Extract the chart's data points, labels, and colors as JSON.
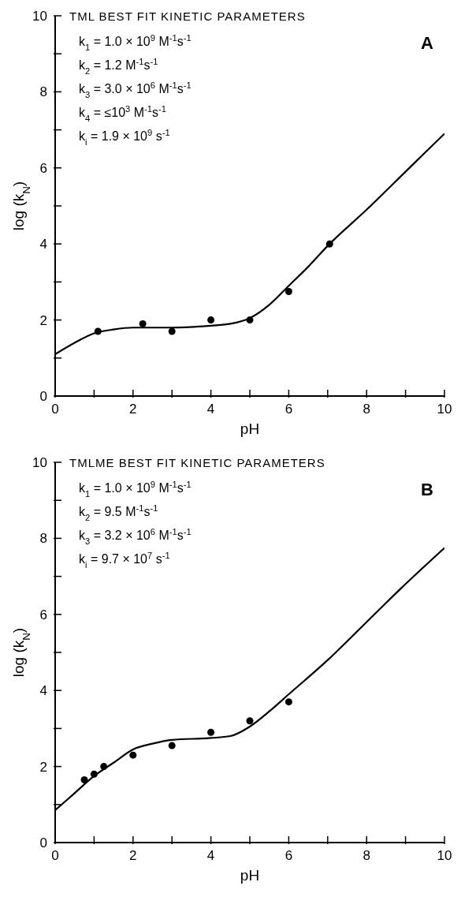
{
  "chart_data": [
    {
      "type": "scatter",
      "title": "TML BEST FIT KINETIC PARAMETERS",
      "xlabel": "pH",
      "ylabel": "log (k$_{N}$)",
      "annotations": [
        "A",
        "k$_{1}$ = 1.0 × 10$^{9}$ M$^{-1}$s$^{-1}$",
        "k$_{2}$ = 1.2 M$^{-1}$s$^{-1}$",
        "k$_{3}$ = 3.0 × 10$^{6}$ M$^{-1}$s$^{-1}$",
        "k$_{4}$ = ≤10$^{3}$ M$^{-1}$s$^{-1}$",
        "k$_{i}$ = 1.9 × 10$^{9}$ s$^{-1}$"
      ],
      "xlim": [
        0,
        10
      ],
      "ylim": [
        0,
        10
      ],
      "xticks": [
        0,
        {
          "value": 1,
          "label": null
        },
        2,
        {
          "value": 3,
          "label": null
        },
        4,
        {
          "value": 5,
          "label": null
        },
        6,
        {
          "value": 7,
          "label": null
        },
        8,
        {
          "value": 9,
          "label": null
        },
        10
      ],
      "yticks": [
        0,
        {
          "value": 1,
          "label": null
        },
        2,
        {
          "value": 3,
          "label": null
        },
        4,
        {
          "value": 5,
          "label": null
        },
        6,
        {
          "value": 7,
          "label": null
        },
        8,
        {
          "value": 9,
          "label": null
        },
        10
      ],
      "series": [
        {
          "type": "scatter",
          "marker": "circle",
          "color": "#000000",
          "x": [
            1.1,
            2.25,
            3,
            4,
            5,
            6,
            7.05
          ],
          "values": [
            1.7,
            1.9,
            1.7,
            2.0,
            2.0,
            2.75,
            4.0
          ]
        },
        {
          "type": "line",
          "color": "#000000",
          "x": [
            0,
            0.5,
            1,
            1.5,
            2,
            3,
            4,
            4.5,
            5,
            5.5,
            6,
            6.5,
            7,
            8,
            9,
            10
          ],
          "values": [
            1.1,
            1.4,
            1.65,
            1.75,
            1.8,
            1.8,
            1.85,
            1.9,
            2.05,
            2.4,
            2.9,
            3.4,
            3.95,
            4.9,
            5.9,
            6.9
          ]
        }
      ]
    },
    {
      "type": "scatter",
      "title": "TMLME BEST FIT KINETIC PARAMETERS",
      "xlabel": "pH",
      "ylabel": "log (k$_{N}$)",
      "annotations": [
        "B",
        "k$_{1}$ = 1.0 × 10$^{9}$ M$^{-1}$s$^{-1}$",
        "k$_{2}$ = 9.5 M$^{-1}$s$^{-1}$",
        "k$_{3}$ = 3.2 × 10$^{6}$ M$^{-1}$s$^{-1}$",
        "k$_{i}$ = 9.7 × 10$^{7}$ s$^{-1}$"
      ],
      "xlim": [
        0,
        10
      ],
      "ylim": [
        0,
        10
      ],
      "xticks": [
        0,
        {
          "value": 1,
          "label": null
        },
        2,
        {
          "value": 3,
          "label": null
        },
        4,
        {
          "value": 5,
          "label": null
        },
        6,
        {
          "value": 7,
          "label": null
        },
        8,
        {
          "value": 9,
          "label": null
        },
        10
      ],
      "yticks": [
        0,
        {
          "value": 1,
          "label": null
        },
        2,
        {
          "value": 3,
          "label": null
        },
        4,
        {
          "value": 5,
          "label": null
        },
        6,
        {
          "value": 7,
          "label": null
        },
        8,
        {
          "value": 9,
          "label": null
        },
        10
      ],
      "series": [
        {
          "type": "scatter",
          "marker": "circle",
          "color": "#000000",
          "x": [
            0.75,
            1.0,
            1.25,
            2,
            3,
            4,
            5,
            6
          ],
          "values": [
            1.65,
            1.8,
            2.0,
            2.3,
            2.55,
            2.9,
            3.2,
            3.7
          ]
        },
        {
          "type": "line",
          "color": "#000000",
          "x": [
            0,
            0.5,
            1,
            1.5,
            2,
            2.5,
            3,
            4,
            4.5,
            5,
            5.5,
            6,
            7,
            8,
            9,
            10
          ],
          "values": [
            0.85,
            1.3,
            1.75,
            2.1,
            2.45,
            2.6,
            2.7,
            2.75,
            2.8,
            3.05,
            3.45,
            3.9,
            4.8,
            5.8,
            6.8,
            7.75
          ]
        }
      ]
    }
  ]
}
